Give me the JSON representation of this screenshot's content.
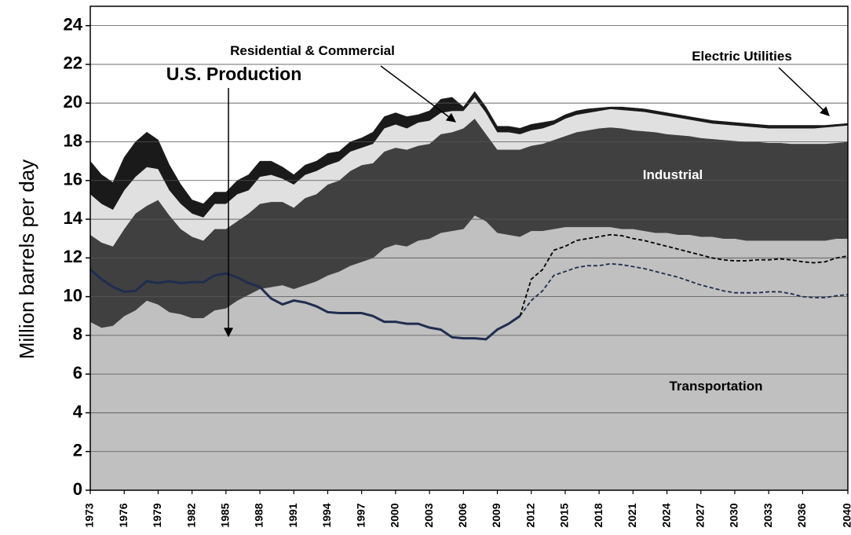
{
  "chart_data": {
    "type": "stacked_area",
    "y_label": "Million barrels per day",
    "x": [
      1973,
      1974,
      1975,
      1976,
      1977,
      1978,
      1979,
      1980,
      1981,
      1982,
      1983,
      1984,
      1985,
      1986,
      1987,
      1988,
      1989,
      1990,
      1991,
      1992,
      1993,
      1994,
      1995,
      1996,
      1997,
      1998,
      1999,
      2000,
      2001,
      2002,
      2003,
      2004,
      2005,
      2006,
      2007,
      2008,
      2009,
      2010,
      2011,
      2012,
      2013,
      2014,
      2015,
      2016,
      2017,
      2018,
      2019,
      2020,
      2021,
      2022,
      2023,
      2024,
      2025,
      2026,
      2027,
      2028,
      2029,
      2030,
      2031,
      2032,
      2033,
      2034,
      2035,
      2036,
      2037,
      2038,
      2039,
      2040
    ],
    "xlim": [
      1973,
      2040
    ],
    "xticks": [
      1973,
      1976,
      1979,
      1982,
      1985,
      1988,
      1991,
      1994,
      1997,
      2000,
      2003,
      2006,
      2009,
      2012,
      2015,
      2018,
      2021,
      2024,
      2027,
      2030,
      2033,
      2036,
      2040
    ],
    "ylim": [
      0,
      25
    ],
    "yticks": [
      0,
      2,
      4,
      6,
      8,
      10,
      12,
      14,
      16,
      18,
      20,
      22,
      24
    ],
    "grid": true,
    "series": [
      {
        "name": "Transportation",
        "color": "#c0c0c0",
        "values": [
          8.7,
          8.4,
          8.5,
          9.0,
          9.3,
          9.8,
          9.6,
          9.2,
          9.1,
          8.9,
          8.9,
          9.3,
          9.4,
          9.8,
          10.1,
          10.4,
          10.5,
          10.6,
          10.4,
          10.6,
          10.8,
          11.1,
          11.3,
          11.6,
          11.8,
          12.0,
          12.5,
          12.7,
          12.6,
          12.9,
          13.0,
          13.3,
          13.4,
          13.5,
          14.2,
          13.9,
          13.3,
          13.2,
          13.1,
          13.4,
          13.4,
          13.5,
          13.6,
          13.6,
          13.6,
          13.6,
          13.6,
          13.5,
          13.5,
          13.4,
          13.3,
          13.3,
          13.2,
          13.2,
          13.1,
          13.1,
          13.0,
          13.0,
          12.9,
          12.9,
          12.9,
          12.9,
          12.9,
          12.9,
          12.9,
          12.9,
          13.0,
          13.0
        ]
      },
      {
        "name": "Industrial",
        "color": "#404040",
        "values": [
          4.5,
          4.4,
          4.1,
          4.5,
          5.0,
          4.9,
          5.4,
          5.0,
          4.4,
          4.2,
          4.0,
          4.2,
          4.1,
          4.1,
          4.2,
          4.4,
          4.4,
          4.3,
          4.2,
          4.5,
          4.5,
          4.7,
          4.7,
          4.9,
          5.0,
          4.9,
          5.0,
          5.0,
          5.0,
          4.9,
          4.9,
          5.1,
          5.1,
          5.2,
          5.0,
          4.5,
          4.3,
          4.4,
          4.5,
          4.4,
          4.5,
          4.6,
          4.7,
          4.9,
          5.0,
          5.1,
          5.15,
          5.2,
          5.1,
          5.15,
          5.2,
          5.1,
          5.15,
          5.1,
          5.1,
          5.05,
          5.1,
          5.05,
          5.1,
          5.1,
          5.05,
          5.05,
          5.0,
          5.0,
          5.0,
          5.0,
          4.95,
          5.0
        ]
      },
      {
        "name": "Residential & Commercial",
        "color": "#e0e0e0",
        "values": [
          2.1,
          2.0,
          1.9,
          2.0,
          1.9,
          2.0,
          1.6,
          1.3,
          1.3,
          1.2,
          1.2,
          1.3,
          1.3,
          1.4,
          1.2,
          1.4,
          1.4,
          1.2,
          1.2,
          1.2,
          1.2,
          1.0,
          1.0,
          1.0,
          0.9,
          1.0,
          1.2,
          1.2,
          1.1,
          1.2,
          1.2,
          1.1,
          1.1,
          0.9,
          1.1,
          1.1,
          0.9,
          0.9,
          0.8,
          0.8,
          0.8,
          0.8,
          0.9,
          0.9,
          0.9,
          0.9,
          0.95,
          0.95,
          1.0,
          1.0,
          0.95,
          0.95,
          0.9,
          0.85,
          0.85,
          0.8,
          0.8,
          0.8,
          0.8,
          0.75,
          0.75,
          0.75,
          0.8,
          0.8,
          0.8,
          0.85,
          0.85,
          0.85
        ]
      },
      {
        "name": "Electric Utilities",
        "color": "#1a1a1a",
        "values": [
          1.7,
          1.5,
          1.4,
          1.7,
          1.8,
          1.8,
          1.5,
          1.3,
          1.0,
          0.7,
          0.7,
          0.6,
          0.6,
          0.7,
          0.8,
          0.8,
          0.7,
          0.6,
          0.5,
          0.5,
          0.5,
          0.6,
          0.5,
          0.5,
          0.5,
          0.6,
          0.6,
          0.6,
          0.6,
          0.4,
          0.5,
          0.7,
          0.7,
          0.2,
          0.3,
          0.3,
          0.3,
          0.3,
          0.3,
          0.3,
          0.3,
          0.2,
          0.2,
          0.2,
          0.2,
          0.15,
          0.1,
          0.15,
          0.15,
          0.15,
          0.15,
          0.15,
          0.15,
          0.15,
          0.15,
          0.15,
          0.15,
          0.15,
          0.15,
          0.15,
          0.15,
          0.15,
          0.15,
          0.15,
          0.15,
          0.1,
          0.1,
          0.1
        ]
      }
    ],
    "lines": [
      {
        "name": "U.S. Production",
        "color": "#1f2d4f",
        "dashed": false,
        "values": [
          11.4,
          10.9,
          10.5,
          10.25,
          10.3,
          10.8,
          10.7,
          10.8,
          10.7,
          10.75,
          10.75,
          11.1,
          11.2,
          11.0,
          10.7,
          10.5,
          9.9,
          9.6,
          9.8,
          9.7,
          9.5,
          9.2,
          9.15,
          9.15,
          9.15,
          9.0,
          8.7,
          8.7,
          8.6,
          8.6,
          8.4,
          8.3,
          7.9,
          7.85,
          7.85,
          7.8,
          8.3,
          8.6,
          9.0,
          null,
          null,
          null,
          null,
          null,
          null,
          null,
          null,
          null,
          null,
          null,
          null,
          null,
          null,
          null,
          null,
          null,
          null,
          null,
          null,
          null,
          null,
          null,
          null,
          null,
          null,
          null,
          null,
          null
        ]
      },
      {
        "color": "#1f2d4f",
        "dashed": true,
        "values": [
          null,
          null,
          null,
          null,
          null,
          null,
          null,
          null,
          null,
          null,
          null,
          null,
          null,
          null,
          null,
          null,
          null,
          null,
          null,
          null,
          null,
          null,
          null,
          null,
          null,
          null,
          null,
          null,
          null,
          null,
          null,
          null,
          null,
          null,
          null,
          null,
          null,
          null,
          9.0,
          9.8,
          10.3,
          11.1,
          11.3,
          11.5,
          11.6,
          11.6,
          11.7,
          11.65,
          11.55,
          11.45,
          11.3,
          11.15,
          11.0,
          10.8,
          10.6,
          10.45,
          10.3,
          10.2,
          10.2,
          10.2,
          10.25,
          10.25,
          10.15,
          10.0,
          9.95,
          9.95,
          10.05,
          10.1
        ]
      },
      {
        "color": "#000000",
        "dashed": true,
        "values": [
          null,
          null,
          null,
          null,
          null,
          null,
          null,
          null,
          null,
          null,
          null,
          null,
          null,
          null,
          null,
          null,
          null,
          null,
          null,
          null,
          null,
          null,
          null,
          null,
          null,
          null,
          null,
          null,
          null,
          null,
          null,
          null,
          null,
          null,
          null,
          null,
          null,
          null,
          9.0,
          10.9,
          11.4,
          12.4,
          12.6,
          12.9,
          13.0,
          13.1,
          13.2,
          13.15,
          13.0,
          12.9,
          12.75,
          12.6,
          12.45,
          12.3,
          12.15,
          12.0,
          11.9,
          11.85,
          11.85,
          11.9,
          11.9,
          11.95,
          11.9,
          11.8,
          11.75,
          11.8,
          12.0,
          12.1
        ]
      }
    ]
  }
}
